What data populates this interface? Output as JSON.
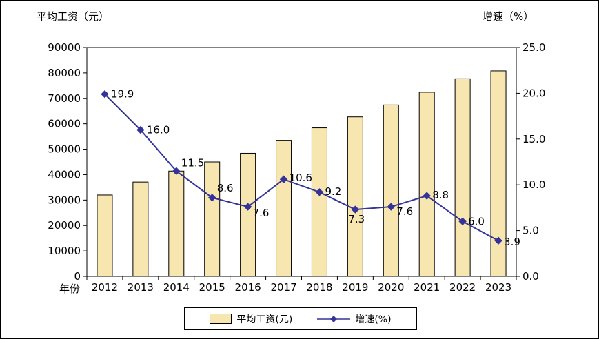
{
  "chart_data": {
    "type": "combo",
    "title": "",
    "categories": [
      "2012",
      "2013",
      "2014",
      "2015",
      "2016",
      "2017",
      "2018",
      "2019",
      "2020",
      "2021",
      "2022",
      "2023"
    ],
    "series": [
      {
        "name": "平均工资(元)",
        "type": "bar",
        "axis": "left",
        "color": "#F7E6B0",
        "border_color": "#000000",
        "values": [
          32000,
          37100,
          41400,
          45000,
          48400,
          53500,
          58400,
          62700,
          67400,
          72400,
          77700,
          80800
        ]
      },
      {
        "name": "增速(%)",
        "type": "line",
        "axis": "right",
        "color": "#333399",
        "values": [
          19.9,
          16.0,
          11.5,
          8.6,
          7.6,
          10.6,
          9.2,
          7.3,
          7.6,
          8.8,
          6.0,
          3.9
        ],
        "labels": [
          "19.9",
          "16.0",
          "11.5",
          "8.6",
          "7.6",
          "10.6",
          "9.2",
          "7.3",
          "7.6",
          "8.8",
          "6.0",
          "3.9"
        ],
        "label_offsets": [
          [
            9,
            5
          ],
          [
            9,
            5
          ],
          [
            7,
            -7
          ],
          [
            7,
            -9
          ],
          [
            7,
            14
          ],
          [
            8,
            3
          ],
          [
            8,
            4
          ],
          [
            -10,
            19
          ],
          [
            8,
            12
          ],
          [
            8,
            4
          ],
          [
            8,
            5
          ],
          [
            8,
            7
          ]
        ]
      }
    ],
    "left_axis": {
      "title": "平均工资（元）",
      "min": 0,
      "max": 90000,
      "ticks": [
        "0",
        "10000",
        "20000",
        "30000",
        "40000",
        "50000",
        "60000",
        "70000",
        "80000",
        "90000"
      ]
    },
    "right_axis": {
      "title": "增速（%）",
      "min": 0,
      "max": 25,
      "ticks": [
        "0.0",
        "5.0",
        "10.0",
        "15.0",
        "20.0",
        "25.0"
      ]
    },
    "x_axis": {
      "title": "年份"
    },
    "legend_position": "bottom",
    "grid": false
  }
}
